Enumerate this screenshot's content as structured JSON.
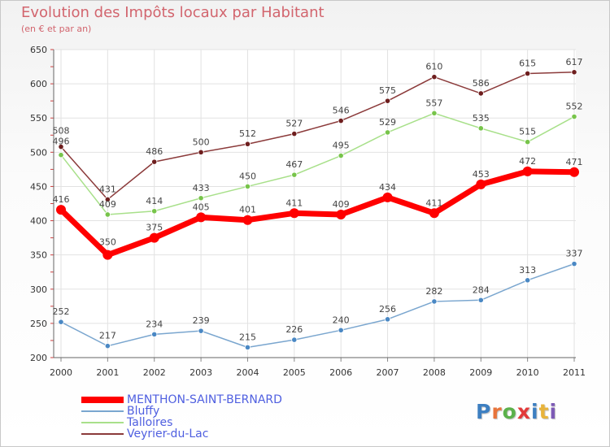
{
  "title": "Evolution des Impôts locaux par Habitant",
  "subtitle": "(en € et par an)",
  "logo": {
    "letters": [
      "P",
      "r",
      "o",
      "x",
      "i",
      "t",
      "i"
    ],
    "colors": [
      "#3d7fc1",
      "#e8743b",
      "#5bb14b",
      "#e23a3a",
      "#3d7fc1",
      "#e8b33b",
      "#7d5ab5"
    ]
  },
  "chart_data": {
    "type": "line",
    "title": "Evolution des Impôts locaux par Habitant",
    "subtitle": "(en € et par an)",
    "xlabel": "",
    "ylabel": "",
    "ylim": [
      200,
      650
    ],
    "yticks": [
      200,
      250,
      300,
      350,
      400,
      450,
      500,
      550,
      600,
      650
    ],
    "grid": true,
    "legend_position": "bottom-left",
    "x": [
      "2000",
      "2001",
      "2002",
      "2003",
      "2004",
      "2005",
      "2006",
      "2007",
      "2008",
      "2009",
      "2010",
      "2011"
    ],
    "series": [
      {
        "name": "MENTHON-SAINT-BERNARD",
        "values": [
          416,
          350,
          375,
          405,
          401,
          411,
          409,
          434,
          411,
          453,
          472,
          471
        ],
        "color": "#ff0000",
        "marker_color": "#ff0000",
        "width": "bold"
      },
      {
        "name": "Bluffy",
        "values": [
          252,
          217,
          234,
          239,
          215,
          226,
          240,
          256,
          282,
          284,
          313,
          337
        ],
        "color": "#7aa6cf",
        "marker_color": "#4a88c4",
        "width": "thin"
      },
      {
        "name": "Talloires",
        "values": [
          496,
          409,
          414,
          433,
          450,
          467,
          495,
          529,
          557,
          535,
          515,
          552
        ],
        "color": "#a8e08a",
        "marker_color": "#77c44a",
        "width": "thin"
      },
      {
        "name": "Veyrier-du-Lac",
        "values": [
          508,
          431,
          486,
          500,
          512,
          527,
          546,
          575,
          610,
          586,
          615,
          617
        ],
        "color": "#8b3a3a",
        "marker_color": "#6e1e1e",
        "width": "thin"
      }
    ]
  }
}
